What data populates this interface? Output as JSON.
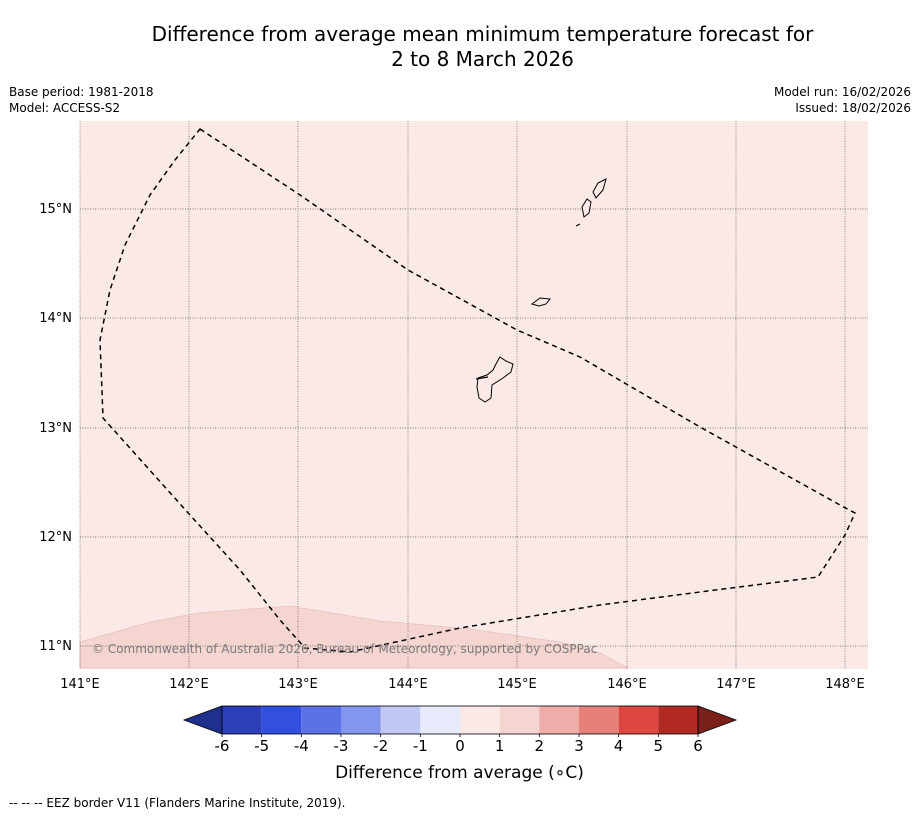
{
  "title": {
    "line1": "Difference from average mean minimum temperature forecast for",
    "line2": "2 to 8 March 2026"
  },
  "meta": {
    "base_period": "Base period: 1981-2018",
    "model": "Model: ACCESS-S2",
    "model_run": "Model run: 16/02/2026",
    "issued": "Issued: 18/02/2026"
  },
  "map": {
    "lon_labels": [
      "141°E",
      "142°E",
      "143°E",
      "144°E",
      "145°E",
      "146°E",
      "147°E",
      "148°E"
    ],
    "lat_labels": [
      "15°N",
      "14°N",
      "13°N",
      "12°N",
      "11°N"
    ],
    "copyright": "© Commonwealth of Australia 2026, Bureau of Meteorology, supported by COSPPac",
    "colors": {
      "background_anomaly": "#fbe9e7",
      "warmer_anomaly": "#f5d5d2"
    }
  },
  "colorbar": {
    "title": "Difference from average (∘C)",
    "ticks": [
      "-6",
      "-5",
      "-4",
      "-3",
      "-2",
      "-1",
      "0",
      "1",
      "2",
      "3",
      "4",
      "5",
      "6"
    ],
    "colors": [
      "#1f2f8c",
      "#2a3fb8",
      "#3250e0",
      "#5a72e6",
      "#8395ec",
      "#c2c8f4",
      "#e8ebfb",
      "#fbe9e7",
      "#f5d5d2",
      "#eeada8",
      "#e8807a",
      "#dc473f",
      "#b02a22",
      "#7a1f1a"
    ]
  },
  "footnote": "--  --  -- EEZ border V11 (Flanders Marine Institute, 2019)."
}
